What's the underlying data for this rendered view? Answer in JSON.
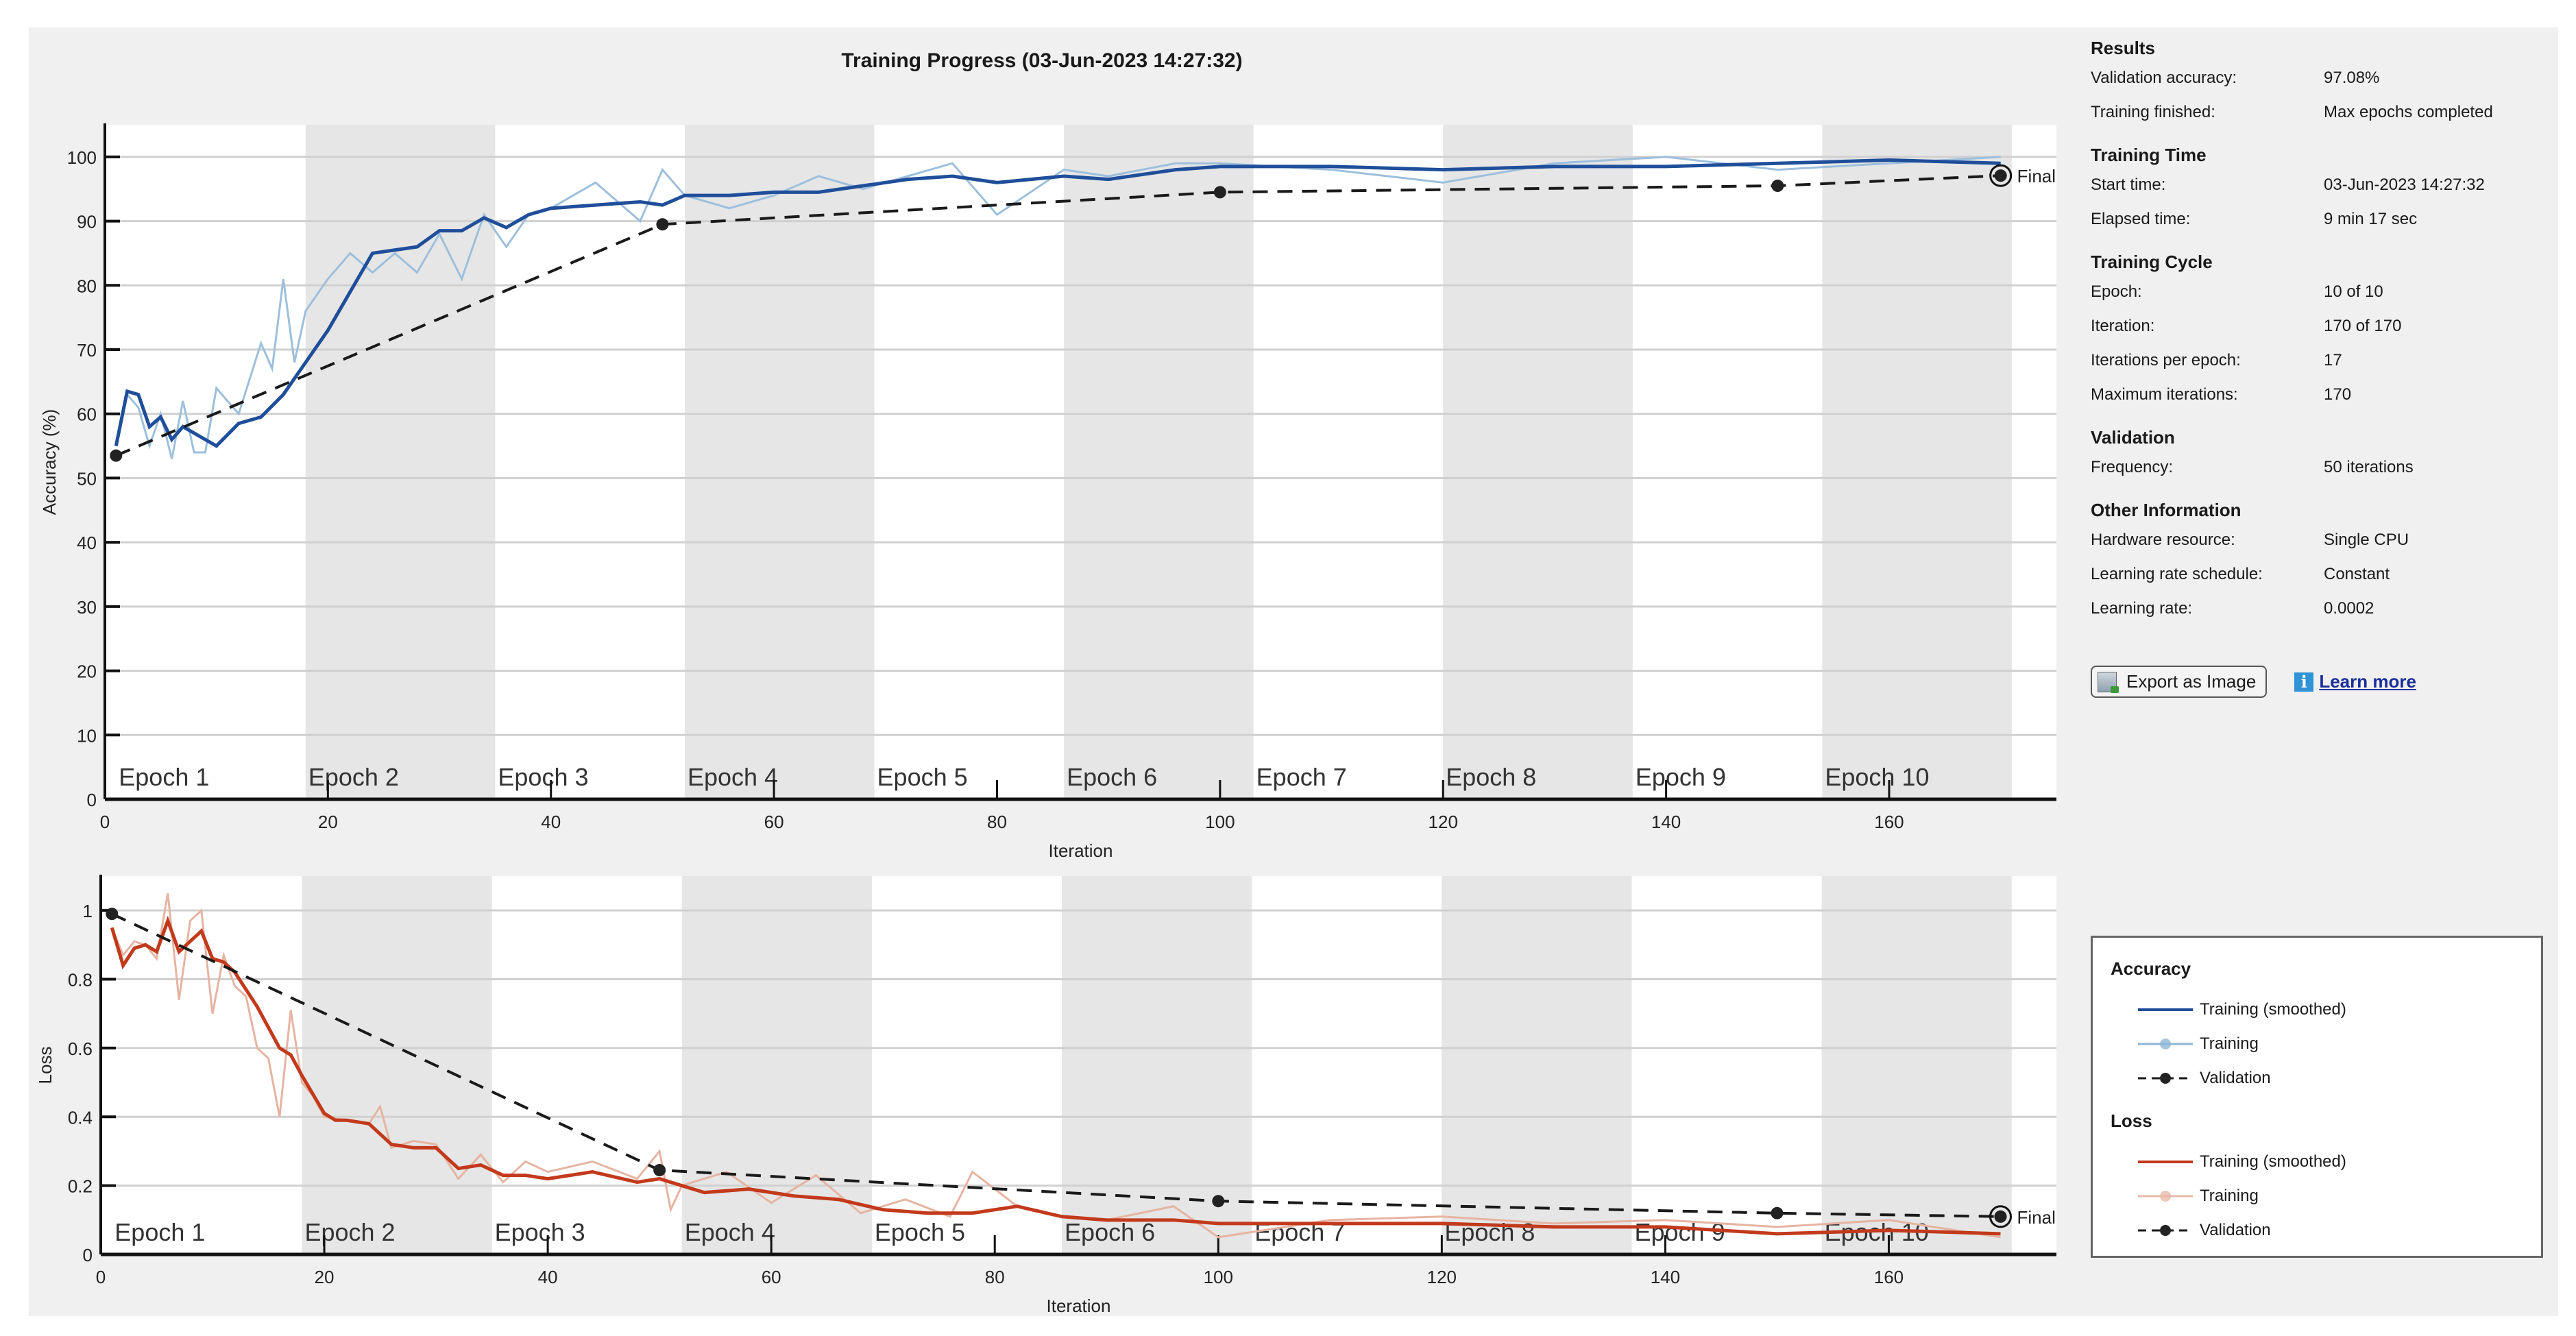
{
  "window": {
    "title": "Training Progress (03-Jun-2023 14:27:32)"
  },
  "info_panel": {
    "sections": [
      {
        "heading": "Results",
        "rows": [
          {
            "label": "Validation accuracy:",
            "value": "97.08%"
          },
          {
            "label": "Training finished:",
            "value": "Max epochs completed"
          }
        ]
      },
      {
        "heading": "Training Time",
        "rows": [
          {
            "label": "Start time:",
            "value": "03-Jun-2023 14:27:32"
          },
          {
            "label": "Elapsed time:",
            "value": "9 min 17 sec"
          }
        ]
      },
      {
        "heading": "Training Cycle",
        "rows": [
          {
            "label": "Epoch:",
            "value": "10 of 10"
          },
          {
            "label": "Iteration:",
            "value": "170 of 170"
          },
          {
            "label": "Iterations per epoch:",
            "value": "17"
          },
          {
            "label": "Maximum iterations:",
            "value": "170"
          }
        ]
      },
      {
        "heading": "Validation",
        "rows": [
          {
            "label": "Frequency:",
            "value": "50 iterations"
          }
        ]
      },
      {
        "heading": "Other Information",
        "rows": [
          {
            "label": "Hardware resource:",
            "value": "Single CPU"
          },
          {
            "label": "Learning rate schedule:",
            "value": "Constant"
          },
          {
            "label": "Learning rate:",
            "value": "0.0002"
          }
        ]
      }
    ],
    "export_button": {
      "label": "Export as Image",
      "icon": "export-image-icon"
    },
    "learn_more": {
      "label": "Learn more",
      "icon": "info-icon"
    }
  },
  "legend": {
    "groups": [
      {
        "title": "Accuracy",
        "items": [
          {
            "label": "Training (smoothed)",
            "style": "solid",
            "color": "#1f4e9a"
          },
          {
            "label": "Training",
            "style": "solid-marker",
            "color": "#8fb6d6"
          },
          {
            "label": "Validation",
            "style": "dashed-marker",
            "color": "#1a1a1a"
          }
        ]
      },
      {
        "title": "Loss",
        "items": [
          {
            "label": "Training (smoothed)",
            "style": "solid",
            "color": "#c2391b"
          },
          {
            "label": "Training",
            "style": "solid-marker",
            "color": "#e8b9a8"
          },
          {
            "label": "Validation",
            "style": "dashed-marker",
            "color": "#1a1a1a"
          }
        ]
      }
    ]
  },
  "colors": {
    "acc_smoothed": "#1f4e9a",
    "acc_raw": "#9dbfdc",
    "loss_smoothed": "#c2391b",
    "loss_raw": "#e6b4a2",
    "validation": "#1a1a1a",
    "epoch_shade": "#e6e6e6",
    "grid": "#d0d0d0"
  },
  "chart_data": [
    {
      "type": "line",
      "title": "Training Progress (03-Jun-2023 14:27:32)",
      "xlabel": "Iteration",
      "ylabel": "Accuracy (%)",
      "xlim": [
        0,
        175
      ],
      "ylim": [
        0,
        105
      ],
      "xticks": [
        0,
        20,
        40,
        60,
        80,
        100,
        120,
        140,
        160
      ],
      "yticks": [
        0,
        10,
        20,
        30,
        40,
        50,
        60,
        70,
        80,
        90,
        100
      ],
      "grid": true,
      "epoch_labels": [
        "Epoch 1",
        "Epoch 2",
        "Epoch 3",
        "Epoch 4",
        "Epoch 5",
        "Epoch 6",
        "Epoch 7",
        "Epoch 8",
        "Epoch 9",
        "Epoch 10"
      ],
      "iterations_per_epoch": 17,
      "final_label": "Final",
      "series": [
        {
          "name": "Training (smoothed)",
          "x": [
            1,
            2,
            3,
            4,
            5,
            6,
            7,
            8,
            9,
            10,
            12,
            14,
            16,
            18,
            20,
            22,
            24,
            26,
            28,
            30,
            32,
            34,
            36,
            38,
            40,
            44,
            48,
            50,
            52,
            56,
            60,
            64,
            68,
            72,
            76,
            80,
            86,
            90,
            96,
            100,
            110,
            120,
            130,
            140,
            150,
            160,
            170
          ],
          "values": [
            55,
            63.5,
            63,
            58,
            59.5,
            56,
            58,
            57,
            56,
            55,
            58.5,
            59.5,
            63,
            68,
            73,
            79,
            85,
            85.5,
            86,
            88.5,
            88.5,
            90.5,
            89,
            91,
            92,
            92.5,
            93,
            92.5,
            94,
            94,
            94.5,
            94.5,
            95.5,
            96.5,
            97,
            96,
            97,
            96.5,
            98,
            98.5,
            98.5,
            98,
            98.5,
            98.5,
            99,
            99.5,
            99
          ]
        },
        {
          "name": "Training",
          "x": [
            1,
            2,
            3,
            4,
            5,
            6,
            7,
            8,
            9,
            10,
            12,
            14,
            15,
            16,
            17,
            18,
            20,
            22,
            24,
            26,
            28,
            30,
            32,
            34,
            36,
            38,
            40,
            44,
            48,
            50,
            52,
            56,
            60,
            64,
            68,
            72,
            76,
            80,
            86,
            90,
            96,
            100,
            110,
            120,
            130,
            140,
            150,
            160,
            170
          ],
          "values": [
            55,
            63,
            61,
            55,
            60,
            53,
            62,
            54,
            54,
            64,
            60,
            71,
            67,
            81,
            68,
            76,
            81,
            85,
            82,
            85,
            82,
            88,
            81,
            91,
            86,
            91,
            92,
            96,
            90,
            98,
            94,
            92,
            94,
            97,
            95,
            97,
            99,
            91,
            98,
            97,
            99,
            99,
            98,
            96,
            99,
            100,
            98,
            99,
            100
          ]
        },
        {
          "name": "Validation",
          "x": [
            1,
            50,
            100,
            150,
            170
          ],
          "values": [
            53.5,
            89.5,
            94.5,
            95.5,
            97.08
          ]
        }
      ]
    },
    {
      "type": "line",
      "xlabel": "Iteration",
      "ylabel": "Loss",
      "xlim": [
        0,
        175
      ],
      "ylim": [
        0,
        1.1
      ],
      "xticks": [
        0,
        20,
        40,
        60,
        80,
        100,
        120,
        140,
        160
      ],
      "yticks": [
        0,
        0.2,
        0.4,
        0.6,
        0.8,
        1
      ],
      "grid": true,
      "epoch_labels": [
        "Epoch 1",
        "Epoch 2",
        "Epoch 3",
        "Epoch 4",
        "Epoch 5",
        "Epoch 6",
        "Epoch 7",
        "Epoch 8",
        "Epoch 9",
        "Epoch 10"
      ],
      "final_label": "Final",
      "series": [
        {
          "name": "Training (smoothed)",
          "x": [
            1,
            2,
            3,
            4,
            5,
            6,
            7,
            8,
            9,
            10,
            11,
            12,
            14,
            16,
            17,
            18,
            20,
            21,
            22,
            24,
            26,
            28,
            30,
            32,
            34,
            36,
            38,
            40,
            44,
            48,
            50,
            54,
            58,
            62,
            66,
            70,
            74,
            78,
            82,
            86,
            90,
            96,
            100,
            110,
            120,
            130,
            140,
            150,
            160,
            170
          ],
          "values": [
            0.95,
            0.84,
            0.89,
            0.9,
            0.88,
            0.97,
            0.88,
            0.91,
            0.94,
            0.86,
            0.85,
            0.82,
            0.72,
            0.6,
            0.58,
            0.52,
            0.41,
            0.39,
            0.39,
            0.38,
            0.32,
            0.31,
            0.31,
            0.25,
            0.26,
            0.23,
            0.23,
            0.22,
            0.24,
            0.21,
            0.22,
            0.18,
            0.19,
            0.17,
            0.16,
            0.13,
            0.12,
            0.12,
            0.14,
            0.11,
            0.1,
            0.1,
            0.09,
            0.09,
            0.09,
            0.08,
            0.08,
            0.06,
            0.07,
            0.06
          ]
        },
        {
          "name": "Training",
          "x": [
            1,
            2,
            3,
            4,
            5,
            6,
            7,
            8,
            9,
            10,
            11,
            12,
            13,
            14,
            15,
            16,
            17,
            18,
            19,
            20,
            22,
            24,
            25,
            26,
            28,
            30,
            32,
            34,
            36,
            38,
            40,
            44,
            48,
            50,
            51,
            52,
            56,
            60,
            64,
            68,
            72,
            76,
            78,
            82,
            86,
            90,
            96,
            100,
            110,
            120,
            130,
            140,
            150,
            160,
            170
          ],
          "values": [
            0.95,
            0.87,
            0.91,
            0.9,
            0.86,
            1.05,
            0.74,
            0.97,
            1.0,
            0.7,
            0.87,
            0.78,
            0.75,
            0.6,
            0.57,
            0.4,
            0.71,
            0.5,
            0.46,
            0.4,
            0.39,
            0.38,
            0.43,
            0.31,
            0.33,
            0.32,
            0.22,
            0.29,
            0.21,
            0.27,
            0.24,
            0.27,
            0.22,
            0.3,
            0.13,
            0.2,
            0.24,
            0.15,
            0.23,
            0.12,
            0.16,
            0.11,
            0.24,
            0.14,
            0.11,
            0.1,
            0.14,
            0.05,
            0.1,
            0.11,
            0.09,
            0.1,
            0.08,
            0.1,
            0.05
          ]
        },
        {
          "name": "Validation",
          "x": [
            1,
            50,
            100,
            150,
            170
          ],
          "values": [
            0.99,
            0.245,
            0.155,
            0.12,
            0.11
          ]
        }
      ]
    }
  ]
}
